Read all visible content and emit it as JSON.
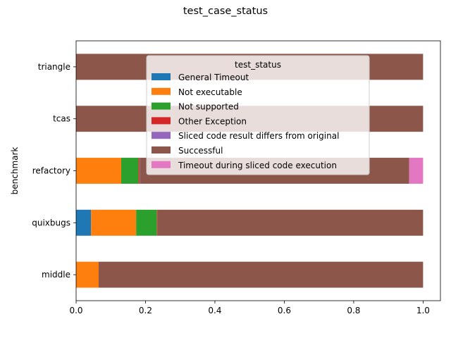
{
  "chart_data": {
    "type": "bar",
    "orientation": "horizontal",
    "stacked": true,
    "title": "test_case_status",
    "xlabel": "",
    "ylabel": "benchmark",
    "xlim": [
      0,
      1.05
    ],
    "xticks": [
      "0.0",
      "0.2",
      "0.4",
      "0.6",
      "0.8",
      "1.0"
    ],
    "grid": false,
    "legend": {
      "title": "test_status",
      "placement": "top-center"
    },
    "categories": [
      "middle",
      "quixbugs",
      "refactory",
      "tcas",
      "triangle"
    ],
    "series": [
      {
        "name": "General Timeout",
        "color": "#1f77b4",
        "values": [
          0.0,
          0.043,
          0.0,
          0.0,
          0.0
        ]
      },
      {
        "name": "Not executable",
        "color": "#ff7f0e",
        "values": [
          0.065,
          0.13,
          0.13,
          0.0,
          0.0
        ]
      },
      {
        "name": "Not supported",
        "color": "#2ca02c",
        "values": [
          0.0,
          0.06,
          0.05,
          0.0,
          0.0
        ]
      },
      {
        "name": "Other Exception",
        "color": "#d62728",
        "values": [
          0.0,
          0.002,
          0.003,
          0.0,
          0.0
        ]
      },
      {
        "name": "Sliced code result differs from original",
        "color": "#9467bd",
        "values": [
          0.0,
          0.0,
          0.001,
          0.0,
          0.0
        ]
      },
      {
        "name": "Successful",
        "color": "#8c564b",
        "values": [
          0.935,
          0.765,
          0.776,
          1.0,
          1.0
        ]
      },
      {
        "name": "Timeout during sliced code execution",
        "color": "#e377c2",
        "values": [
          0.0,
          0.0,
          0.04,
          0.0,
          0.0
        ]
      }
    ]
  }
}
